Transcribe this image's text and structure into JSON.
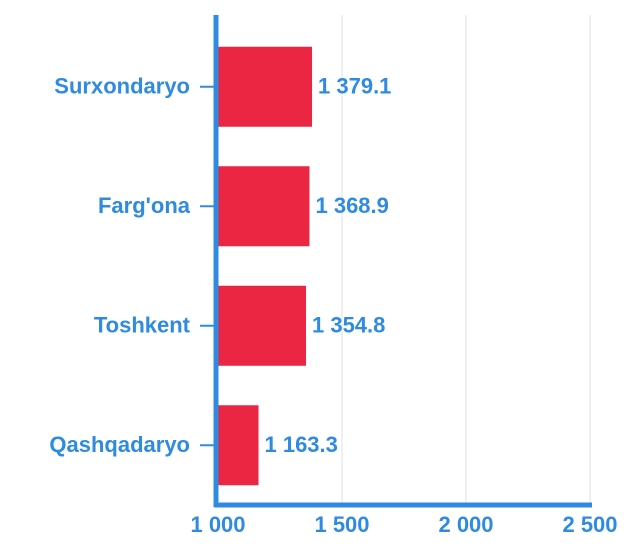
{
  "chart_data": {
    "type": "bar",
    "orientation": "horizontal",
    "categories": [
      "Surxondaryo",
      "Farg'ona",
      "Toshkent",
      "Qashqadaryo"
    ],
    "values": [
      1379.1,
      1368.9,
      1354.8,
      1163.3
    ],
    "value_labels": [
      "1 379.1",
      "1 368.9",
      "1 354.8",
      "1 163.3"
    ],
    "color": "#ea2643",
    "xlim": [
      1000,
      2500
    ],
    "xticks": [
      {
        "value": 1000,
        "label": "1 000"
      },
      {
        "value": 1500,
        "label": "1 500"
      },
      {
        "value": 2000,
        "label": "2 000"
      },
      {
        "value": 2500,
        "label": "2 500"
      }
    ],
    "grid": true
  }
}
